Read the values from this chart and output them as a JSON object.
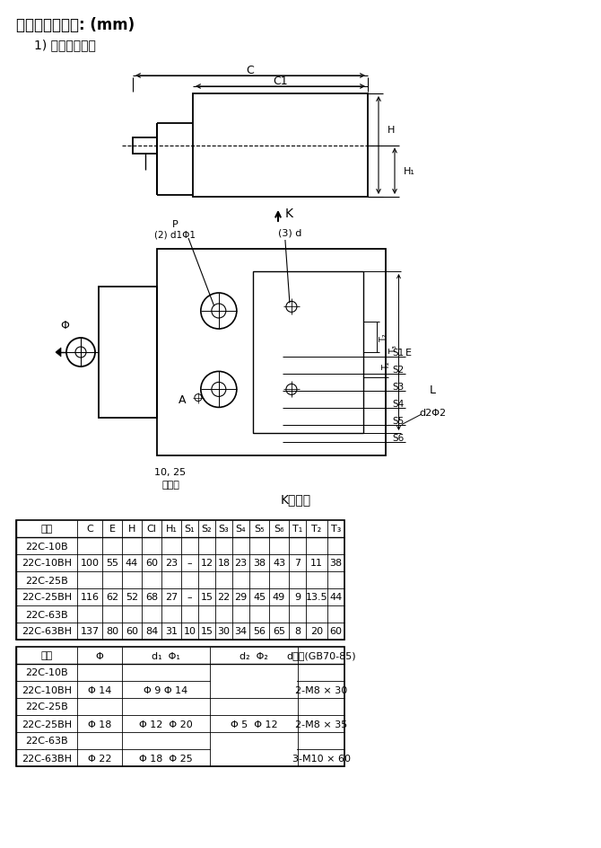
{
  "title1": "外形及安裝尺寸: (mm)",
  "title2": "1) 二位二通型：",
  "k_label": "K向視圖",
  "bg_color": "#ffffff",
  "table1_headers": [
    "型號",
    "C",
    "E",
    "H",
    "Cl",
    "H₁",
    "S₁",
    "S₂",
    "S₃",
    "S₄",
    "S₅",
    "S₆",
    "T₁",
    "T₂",
    "T₃"
  ],
  "table1_data": [
    [
      "22C-10B",
      "",
      "",
      "",
      "",
      "",
      "",
      "",
      "",
      "",
      "",
      "",
      "",
      "",
      ""
    ],
    [
      "22C-10BH",
      "100",
      "55",
      "44",
      "60",
      "23",
      "–",
      "12",
      "18",
      "23",
      "38",
      "43",
      "7",
      "11",
      "38"
    ],
    [
      "22C-25B",
      "",
      "",
      "",
      "",
      "",
      "",
      "",
      "",
      "",
      "",
      "",
      "",
      "",
      ""
    ],
    [
      "22C-25BH",
      "116",
      "62",
      "52",
      "68",
      "27",
      "–",
      "15",
      "22",
      "29",
      "45",
      "49",
      "9",
      "13.5",
      "44"
    ],
    [
      "22C-63B",
      "",
      "",
      "",
      "",
      "",
      "",
      "",
      "",
      "",
      "",
      "",
      "",
      "",
      ""
    ],
    [
      "22C-63BH",
      "137",
      "80",
      "60",
      "84",
      "31",
      "10",
      "15",
      "30",
      "34",
      "56",
      "65",
      "8",
      "20",
      "60"
    ]
  ],
  "table2_headers": [
    "型號",
    "Φ",
    "d₁  Φ₁",
    "d₂  Φ₂",
    "d螺釘(GB70-85)"
  ],
  "table2_data": [
    [
      "22C-10B",
      "",
      "",
      "",
      ""
    ],
    [
      "22C-10BH",
      "Φ 14",
      "Φ 9 Φ 14",
      "",
      "2-M8 × 30"
    ],
    [
      "22C-25B",
      "",
      "",
      "",
      ""
    ],
    [
      "22C-25BH",
      "Φ 18",
      "Φ 12  Φ 20",
      "Φ 5  Φ 12",
      "2-M8 × 35"
    ],
    [
      "22C-63B",
      "",
      "",
      "",
      ""
    ],
    [
      "22C-63BH",
      "Φ 22",
      "Φ 18  Φ 25",
      "",
      "3-M10 × 60"
    ]
  ]
}
